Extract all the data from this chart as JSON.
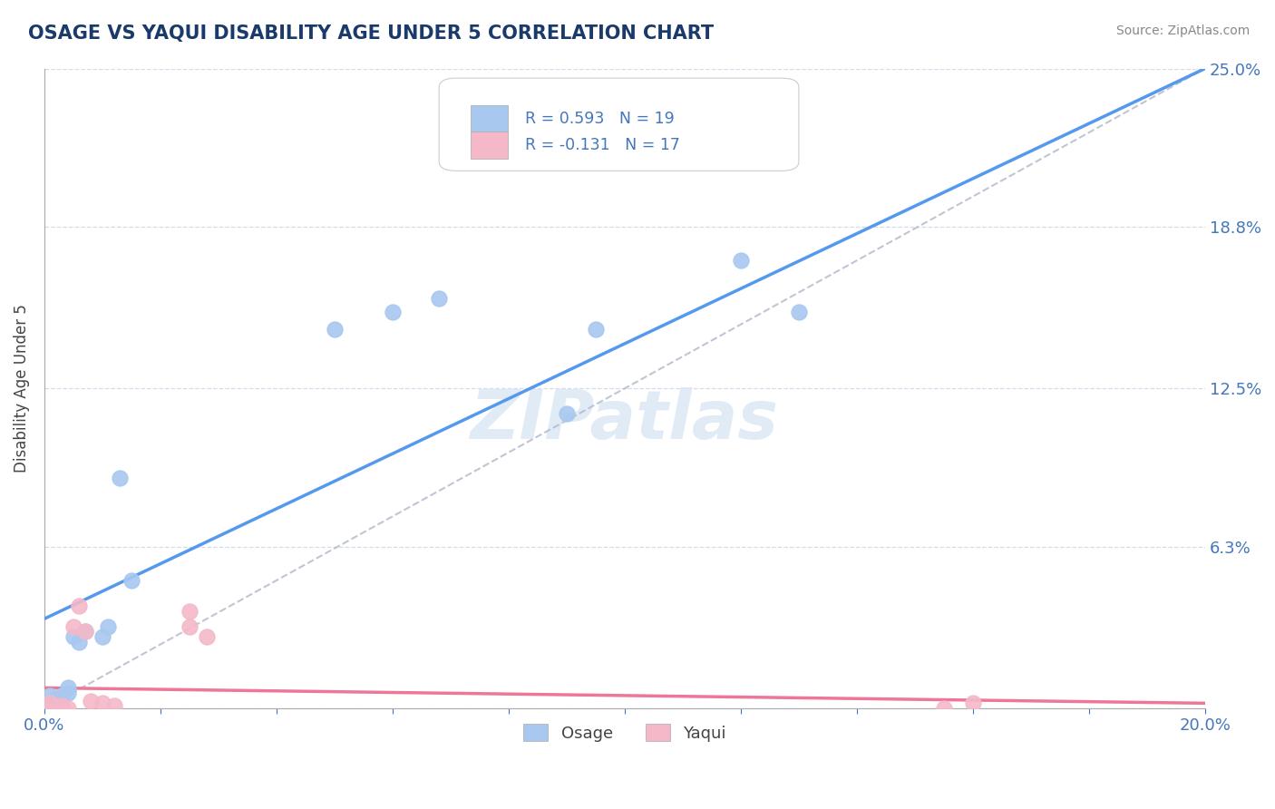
{
  "title": "OSAGE VS YAQUI DISABILITY AGE UNDER 5 CORRELATION CHART",
  "source": "Source: ZipAtlas.com",
  "ylabel": "Disability Age Under 5",
  "xlim": [
    0.0,
    0.2
  ],
  "ylim": [
    0.0,
    0.25
  ],
  "yticks": [
    0.0,
    0.063,
    0.125,
    0.188,
    0.25
  ],
  "ytick_labels": [
    "",
    "6.3%",
    "12.5%",
    "18.8%",
    "25.0%"
  ],
  "xticks": [
    0.0,
    0.02,
    0.04,
    0.06,
    0.08,
    0.1,
    0.12,
    0.14,
    0.16,
    0.18,
    0.2
  ],
  "xtick_labels": [
    "0.0%",
    "",
    "",
    "",
    "",
    "",
    "",
    "",
    "",
    "",
    "20.0%"
  ],
  "osage_color": "#a8c8f0",
  "yaqui_color": "#f4b8c8",
  "osage_line_color": "#5599ee",
  "yaqui_line_color": "#ee7799",
  "R_osage": 0.593,
  "N_osage": 19,
  "R_yaqui": -0.131,
  "N_yaqui": 17,
  "osage_x": [
    0.001,
    0.002,
    0.003,
    0.004,
    0.004,
    0.005,
    0.006,
    0.007,
    0.01,
    0.011,
    0.013,
    0.015,
    0.05,
    0.06,
    0.068,
    0.09,
    0.095,
    0.12,
    0.13
  ],
  "osage_y": [
    0.005,
    0.004,
    0.005,
    0.006,
    0.008,
    0.028,
    0.026,
    0.03,
    0.028,
    0.032,
    0.09,
    0.05,
    0.148,
    0.155,
    0.16,
    0.115,
    0.148,
    0.175,
    0.155
  ],
  "yaqui_x": [
    0.001,
    0.001,
    0.002,
    0.002,
    0.003,
    0.004,
    0.005,
    0.006,
    0.007,
    0.008,
    0.01,
    0.012,
    0.025,
    0.025,
    0.028,
    0.155,
    0.16
  ],
  "yaqui_y": [
    0.0,
    0.002,
    0.001,
    0.0,
    0.001,
    0.0,
    0.032,
    0.04,
    0.03,
    0.003,
    0.002,
    0.001,
    0.032,
    0.038,
    0.028,
    0.0,
    0.002
  ],
  "osage_line_x": [
    0.0,
    0.2
  ],
  "osage_line_y": [
    0.035,
    0.25
  ],
  "yaqui_line_x": [
    0.0,
    0.2
  ],
  "yaqui_line_y": [
    0.008,
    0.002
  ],
  "dash_line_x": [
    0.0,
    0.2
  ],
  "dash_line_y": [
    0.0,
    0.25
  ],
  "watermark": "ZIPatlas",
  "background_color": "#ffffff",
  "grid_color": "#d0d8e8",
  "title_color": "#1a3a6b",
  "axis_label_color": "#444444",
  "tick_label_color": "#4477bb",
  "legend_r_color": "#4477bb"
}
